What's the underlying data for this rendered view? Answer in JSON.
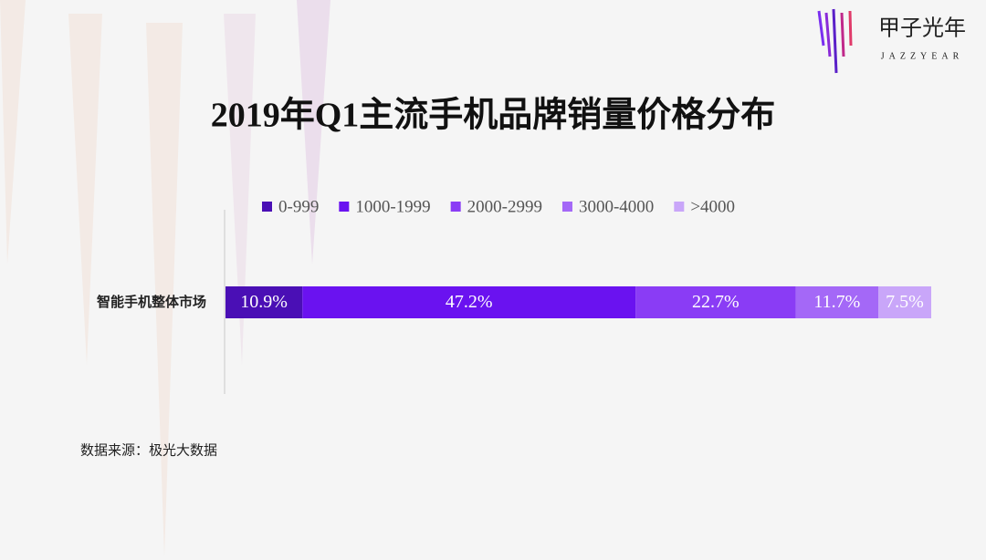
{
  "brand": {
    "name": "甲子光年",
    "tagline": "JAZZYEAR"
  },
  "chart_data": {
    "type": "stacked-bar-horizontal",
    "title": "2019年Q1主流手机品牌销量价格分布",
    "categories": [
      "智能手机整体市场"
    ],
    "series": [
      {
        "name": "0-999",
        "color": "#4a0fb5",
        "values": [
          10.9
        ],
        "value_labels": [
          "10.9%"
        ]
      },
      {
        "name": "1000-1999",
        "color": "#6a12f0",
        "values": [
          47.2
        ],
        "value_labels": [
          "47.2%"
        ]
      },
      {
        "name": "2000-2999",
        "color": "#8a3cf5",
        "values": [
          22.7
        ],
        "value_labels": [
          "22.7%"
        ]
      },
      {
        "name": "3000-4000",
        "color": "#a468f7",
        "values": [
          11.7
        ],
        "value_labels": [
          "11.7%"
        ]
      },
      {
        "name": ">4000",
        "color": "#c9a6f9",
        "values": [
          7.5
        ],
        "value_labels": [
          "7.5%"
        ]
      }
    ],
    "legend": "top",
    "source": "数据来源：极光大数据"
  }
}
